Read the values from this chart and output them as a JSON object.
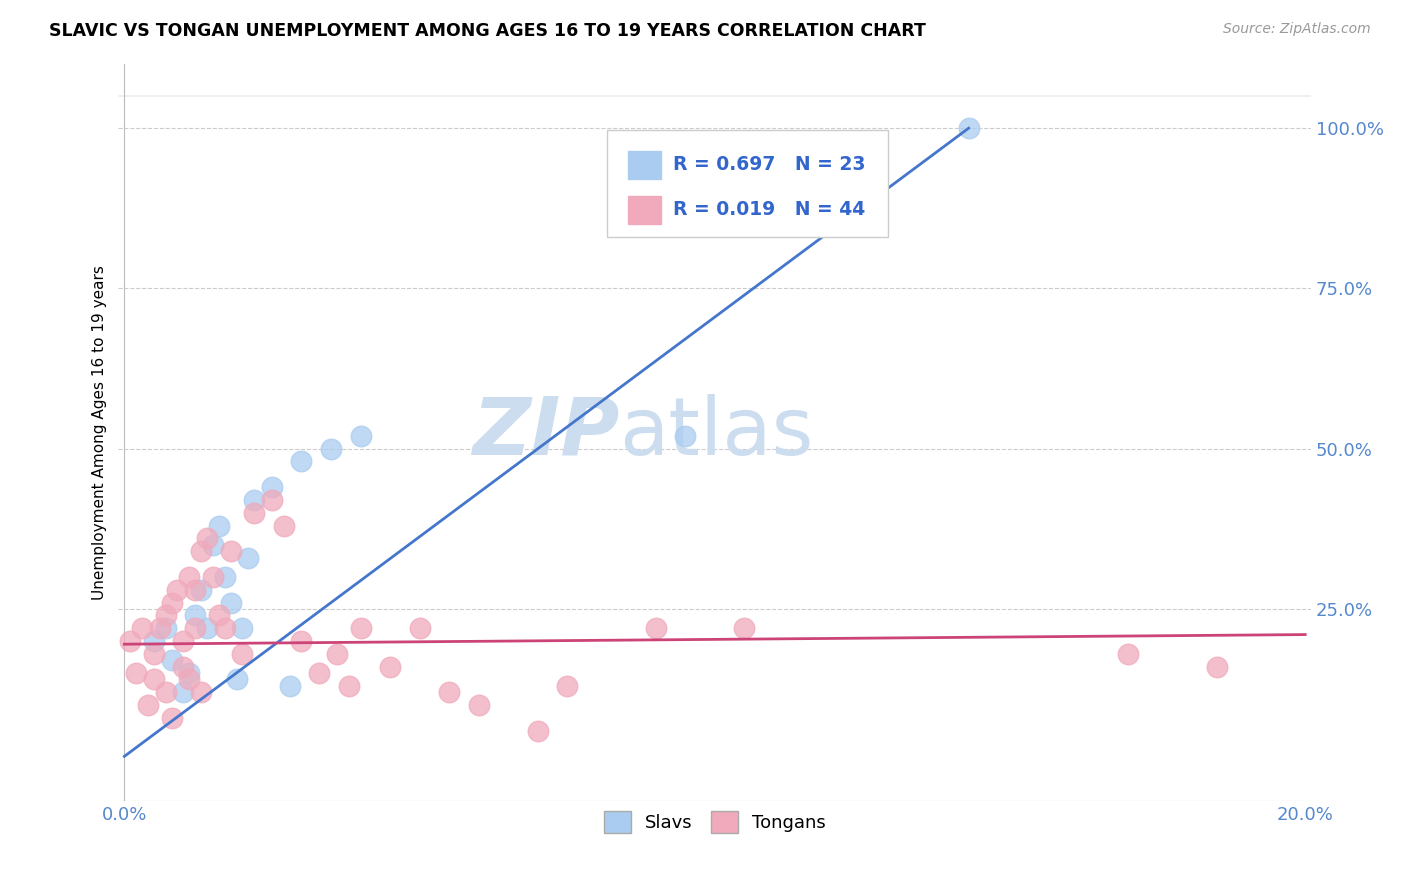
{
  "title": "SLAVIC VS TONGAN UNEMPLOYMENT AMONG AGES 16 TO 19 YEARS CORRELATION CHART",
  "source": "Source: ZipAtlas.com",
  "ylabel": "Unemployment Among Ages 16 to 19 years",
  "xlim": [
    0.0,
    0.2
  ],
  "ylim": [
    -0.05,
    1.1
  ],
  "xticks": [
    0.0,
    0.04,
    0.08,
    0.12,
    0.16,
    0.2
  ],
  "xticklabels": [
    "0.0%",
    "",
    "",
    "",
    "",
    "20.0%"
  ],
  "yticks": [
    0.0,
    0.25,
    0.5,
    0.75,
    1.0
  ],
  "yticklabels": [
    "",
    "25.0%",
    "50.0%",
    "75.0%",
    "100.0%"
  ],
  "legend_r1": "0.697",
  "legend_n1": "23",
  "legend_r2": "0.019",
  "legend_n2": "44",
  "slavs_color": "#aaccf0",
  "tongans_color": "#f0aabb",
  "line_slavs_color": "#4477cc",
  "line_tongans_color": "#cc4477",
  "watermark_zip": "ZIP",
  "watermark_atlas": "atlas",
  "watermark_color": "#ccddef",
  "slavs_x": [
    0.005,
    0.007,
    0.008,
    0.01,
    0.011,
    0.012,
    0.013,
    0.014,
    0.015,
    0.016,
    0.017,
    0.018,
    0.019,
    0.02,
    0.021,
    0.022,
    0.025,
    0.028,
    0.03,
    0.035,
    0.04,
    0.095,
    0.143
  ],
  "slavs_y": [
    0.2,
    0.22,
    0.17,
    0.12,
    0.15,
    0.24,
    0.28,
    0.22,
    0.35,
    0.38,
    0.3,
    0.26,
    0.14,
    0.22,
    0.33,
    0.42,
    0.44,
    0.13,
    0.48,
    0.5,
    0.52,
    0.52,
    1.0
  ],
  "tongans_x": [
    0.001,
    0.002,
    0.003,
    0.004,
    0.005,
    0.005,
    0.006,
    0.007,
    0.007,
    0.008,
    0.008,
    0.009,
    0.01,
    0.01,
    0.011,
    0.011,
    0.012,
    0.012,
    0.013,
    0.013,
    0.014,
    0.015,
    0.016,
    0.017,
    0.018,
    0.02,
    0.022,
    0.025,
    0.027,
    0.03,
    0.033,
    0.036,
    0.038,
    0.04,
    0.045,
    0.05,
    0.055,
    0.06,
    0.07,
    0.075,
    0.09,
    0.105,
    0.17,
    0.185
  ],
  "tongans_y": [
    0.2,
    0.15,
    0.22,
    0.1,
    0.14,
    0.18,
    0.22,
    0.12,
    0.24,
    0.26,
    0.08,
    0.28,
    0.2,
    0.16,
    0.3,
    0.14,
    0.28,
    0.22,
    0.34,
    0.12,
    0.36,
    0.3,
    0.24,
    0.22,
    0.34,
    0.18,
    0.4,
    0.42,
    0.38,
    0.2,
    0.15,
    0.18,
    0.13,
    0.22,
    0.16,
    0.22,
    0.12,
    0.1,
    0.06,
    0.13,
    0.22,
    0.22,
    0.18,
    0.16
  ],
  "line_slavs_x0": 0.0,
  "line_slavs_y0": 0.02,
  "line_slavs_x1": 0.143,
  "line_slavs_y1": 1.0,
  "line_tongans_x0": 0.0,
  "line_tongans_y0": 0.195,
  "line_tongans_x1": 0.2,
  "line_tongans_y1": 0.21
}
